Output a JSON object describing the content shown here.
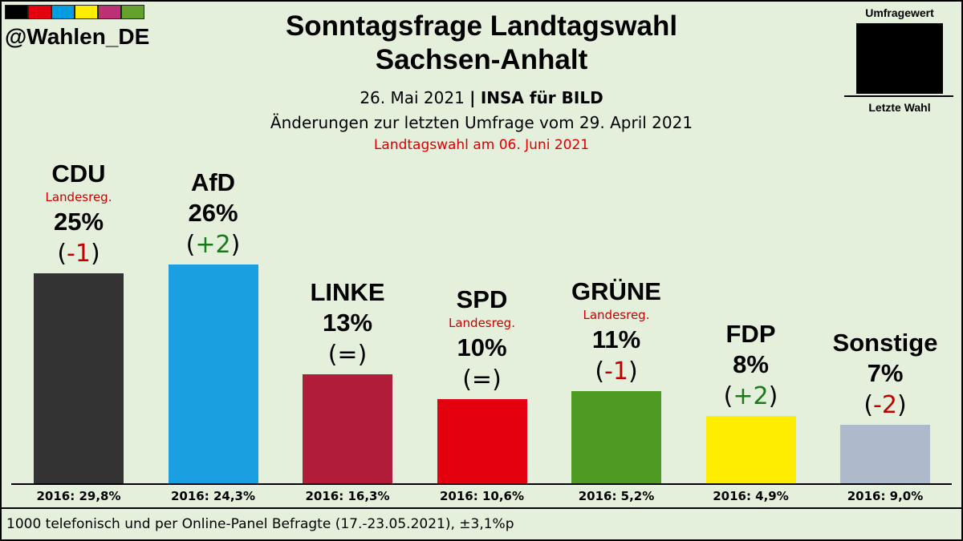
{
  "header": {
    "handle": "@Wahlen_DE",
    "brand_colors": [
      "#000000",
      "#e3000f",
      "#009ee0",
      "#ffed00",
      "#be3075",
      "#64a12d"
    ],
    "title_line1": "Sonntagsfrage Landtagswahl",
    "title_line2": "Sachsen-Anhalt",
    "date": "26. Mai 2021",
    "separator": "|",
    "institute": "INSA für BILD",
    "changes_note": "Änderungen zur letzten Umfrage vom 29. April 2021",
    "election_note": "Landtagswahl  am 06. Juni 2021"
  },
  "legend": {
    "top_label": "Umfragewert",
    "bottom_label": "Letzte Wahl"
  },
  "footer": {
    "note": "1000 telefonisch und per Online-Panel Befragte (17.-23.05.2021),  ±3,1%p"
  },
  "chart_data": {
    "type": "bar",
    "categories": [
      "CDU",
      "AfD",
      "LINKE",
      "SPD",
      "GRÜNE",
      "FDP",
      "Sonstige"
    ],
    "values": [
      25,
      26,
      13,
      10,
      11,
      8,
      7
    ],
    "value_labels": [
      "25%",
      "26%",
      "13%",
      "10%",
      "11%",
      "8%",
      "7%"
    ],
    "changes": [
      "-1",
      "+2",
      "=",
      "=",
      "-1",
      "+2",
      "-2"
    ],
    "government_label": [
      "Landesreg.",
      "",
      "",
      "Landesreg.",
      "Landesreg.",
      "",
      ""
    ],
    "previous_election": [
      "2016: 29,8%",
      "2016: 24,3%",
      "2016: 16,3%",
      "2016: 10,6%",
      "2016: 5,2%",
      "2016: 4,9%",
      "2016: 9,0%"
    ],
    "colors": [
      "#333333",
      "#1a9fe0",
      "#b01c3a",
      "#e3000f",
      "#4f9a23",
      "#ffed00",
      "#aeb9cc"
    ],
    "change_colors": {
      "negative": "#c00000",
      "positive": "#1a7a1a",
      "neutral": "#000000"
    }
  }
}
